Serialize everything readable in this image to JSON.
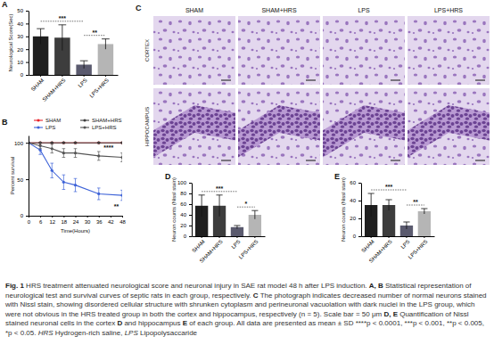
{
  "chart_data": [
    {
      "type": "bar",
      "title": "A",
      "categories": [
        "SHAM",
        "SHAM+HRS",
        "LPS",
        "LPS+HRS"
      ],
      "values": [
        30,
        29,
        8,
        24
      ],
      "errors": [
        6,
        10,
        3,
        4
      ],
      "colors": [
        "#1f1f1f",
        "#3d3d3d",
        "#5a5a6e",
        "#b5b5b5"
      ],
      "ylabel": "Neurological Score(Sec)",
      "ylim": [
        0,
        50
      ],
      "yticks": [
        0,
        10,
        20,
        30,
        40,
        50
      ],
      "annotations": [
        {
          "text": "***",
          "between": [
            "SHAM",
            "LPS"
          ]
        },
        {
          "text": "**",
          "between": [
            "LPS",
            "LPS+HRS"
          ]
        }
      ]
    },
    {
      "type": "line",
      "title": "B",
      "x": [
        0,
        6,
        12,
        18,
        24,
        36,
        48
      ],
      "xlabel": "Time(Hours)",
      "ylabel": "Percent survival",
      "xlim": [
        0,
        48
      ],
      "xticks": [
        0,
        6,
        12,
        18,
        24,
        30,
        36,
        42,
        48
      ],
      "ylim": [
        0,
        110
      ],
      "yticks": [
        0,
        50,
        100
      ],
      "legend": "top",
      "series": [
        {
          "name": "SHAM",
          "color": "#e8212a",
          "marker": "circle",
          "values": [
            100,
            100,
            100,
            100,
            100,
            100,
            100
          ],
          "errors": [
            0,
            0,
            0,
            0,
            0,
            0,
            0
          ]
        },
        {
          "name": "SHAM+HRS",
          "color": "#3c3c3c",
          "marker": "circle",
          "values": [
            100,
            100,
            100,
            100,
            100,
            100,
            100
          ],
          "errors": [
            0,
            0,
            0,
            0,
            0,
            0,
            0
          ]
        },
        {
          "name": "LPS",
          "color": "#3e63d8",
          "marker": "circle",
          "values": [
            100,
            90,
            62,
            46,
            42,
            30,
            28
          ],
          "errors": [
            0,
            6,
            10,
            10,
            9,
            8,
            7
          ]
        },
        {
          "name": "LPS+HRS",
          "color": "#555555",
          "marker": "circle",
          "values": [
            100,
            96,
            92,
            86,
            86,
            82,
            80
          ],
          "errors": [
            0,
            4,
            6,
            6,
            6,
            6,
            6
          ]
        }
      ],
      "annotations": [
        {
          "text": "****",
          "x": 41,
          "y": 91
        },
        {
          "text": "**",
          "x": 45,
          "y": 10
        }
      ]
    },
    {
      "type": "bar",
      "title": "D",
      "categories": [
        "SHAM",
        "SHAM+HRS",
        "LPS",
        "LPS+HRS"
      ],
      "values": [
        57,
        57,
        17,
        40
      ],
      "errors": [
        20,
        20,
        3,
        8
      ],
      "colors": [
        "#1f1f1f",
        "#3d3d3d",
        "#5a5a6e",
        "#b5b5b5"
      ],
      "ylabel": "Neuron counts (Nissl stain)",
      "ylim": [
        0,
        100
      ],
      "yticks": [
        0,
        20,
        40,
        60,
        80,
        100
      ],
      "annotations": [
        {
          "text": "***",
          "between": [
            "SHAM",
            "LPS"
          ]
        },
        {
          "text": "*",
          "between": [
            "LPS",
            "LPS+HRS"
          ]
        }
      ]
    },
    {
      "type": "bar",
      "title": "E",
      "categories": [
        "SHAM",
        "SHAM+HRS",
        "LPS",
        "LPS+HRS"
      ],
      "values": [
        35,
        35,
        12,
        28
      ],
      "errors": [
        13,
        6,
        4,
        3
      ],
      "colors": [
        "#1f1f1f",
        "#3d3d3d",
        "#5a5a6e",
        "#b5b5b5"
      ],
      "ylabel": "Neuron counts (Nissl stain)",
      "ylim": [
        0,
        60
      ],
      "yticks": [
        0,
        20,
        40,
        60
      ],
      "annotations": [
        {
          "text": "***",
          "between": [
            "SHAM",
            "LPS"
          ]
        },
        {
          "text": "**",
          "between": [
            "LPS",
            "LPS+HRS"
          ]
        }
      ]
    }
  ],
  "figure": {
    "micrograph": {
      "title": "C",
      "columns": [
        "SHAM",
        "SHAM+HRS",
        "LPS",
        "LPS+HRS"
      ],
      "rows": [
        "CORTEX",
        "HIPPOCAMPUS"
      ]
    },
    "caption": [
      {
        "text": "Fig. 1",
        "bold": true
      },
      {
        "text": " HRS treatment attenuated neurological score and neuronal injury in SAE rat model 48 h after LPS induction. "
      },
      {
        "text": "A, B",
        "bold": true
      },
      {
        "text": " Statistical representation of neurological test and survival curves of septic rats in each group, respectively. "
      },
      {
        "text": "C",
        "bold": true
      },
      {
        "text": " The photograph indicates decreased number of normal neurons stained with Nissl stain, showing disordered cellular structure with shrunken cytoplasm and perineuronal vacuolation with dark nuclei in the LPS group, which were not obvious in the HRS treated group in both the cortex and hippocampus, respectively (n = 5). Scale bar = 50 μm "
      },
      {
        "text": "D, E",
        "bold": true
      },
      {
        "text": " Quantification of Nissl stained neuronal cells in the cortex "
      },
      {
        "text": "D",
        "bold": true
      },
      {
        "text": " and hippocampus "
      },
      {
        "text": "E",
        "bold": true
      },
      {
        "text": " of each group. All data are presented as mean ± SD ****p < 0.0001, ***p < 0.001, **p < 0.005, *p < 0.05. "
      },
      {
        "text": "HRS",
        "italic": true
      },
      {
        "text": " Hydrogen-rich saline, "
      },
      {
        "text": "LPS",
        "italic": true
      },
      {
        "text": " Lipopolysaccaride"
      }
    ]
  }
}
